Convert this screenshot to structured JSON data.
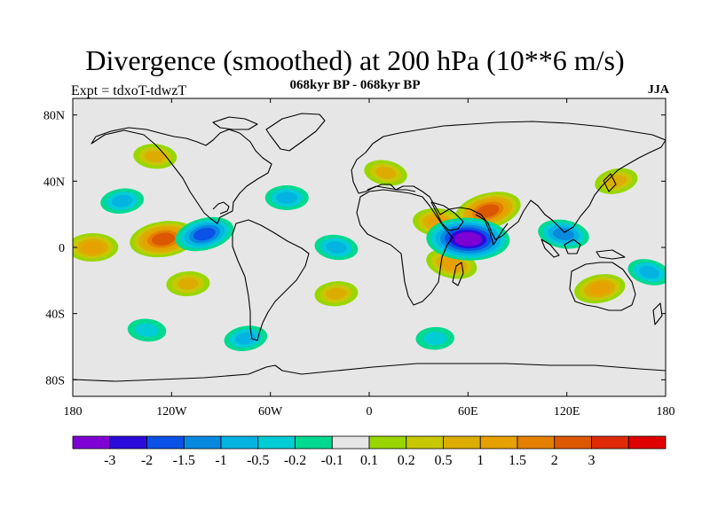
{
  "title": "Divergence (smoothed) at 200 hPa (10**6 m/s)",
  "subtitle": "068kyr BP - 068kyr BP",
  "left_label": "Expt = tdxoT-tdwzT",
  "right_label": "JJA",
  "map": {
    "projection": "cylindrical-equidistant",
    "lon_range": [
      -180,
      180
    ],
    "lat_range": [
      -90,
      90
    ],
    "background_color": "#e6e6e6",
    "coastline_color": "#000000"
  },
  "axes": {
    "x_ticks": [
      {
        "value": -180,
        "label": "180"
      },
      {
        "value": -120,
        "label": "120W"
      },
      {
        "value": -60,
        "label": "60W"
      },
      {
        "value": 0,
        "label": "0"
      },
      {
        "value": 60,
        "label": "60E"
      },
      {
        "value": 120,
        "label": "120E"
      },
      {
        "value": 180,
        "label": "180"
      }
    ],
    "y_ticks": [
      {
        "value": 80,
        "label": "80N"
      },
      {
        "value": 40,
        "label": "40N"
      },
      {
        "value": 0,
        "label": "0"
      },
      {
        "value": -40,
        "label": "40S"
      },
      {
        "value": -80,
        "label": "80S"
      }
    ]
  },
  "colorbar": {
    "colors": [
      "#7f00d4",
      "#2b0bdc",
      "#0b52e6",
      "#0789e0",
      "#04b3e2",
      "#02ccd6",
      "#00d990",
      "#e6e6e6",
      "#99d600",
      "#c8c800",
      "#dcad00",
      "#e6a000",
      "#e47f00",
      "#dc5800",
      "#e02b08",
      "#e00000"
    ],
    "labels": [
      "-3",
      "-2",
      "-1.5",
      "-1",
      "-0.5",
      "-0.2",
      "-0.1",
      "0.1",
      "0.2",
      "0.5",
      "1",
      "1.5",
      "2",
      "3"
    ]
  },
  "chart_data": {
    "type": "heatmap",
    "variable": "Divergence (smoothed)",
    "level": "200 hPa",
    "units": "10**6 m/s",
    "season": "JJA",
    "contour_levels": [
      -3,
      -2,
      -1.5,
      -1,
      -0.5,
      -0.2,
      -0.1,
      0.1,
      0.2,
      0.5,
      1,
      1.5,
      2,
      3
    ],
    "features": [
      {
        "lon": 72,
        "lat": 22,
        "value": 2
      },
      {
        "lon": -125,
        "lat": 5,
        "value": 2
      },
      {
        "lon": -168,
        "lat": 0,
        "value": 1
      },
      {
        "lon": 42,
        "lat": 15,
        "value": 1
      },
      {
        "lon": 50,
        "lat": -10,
        "value": 1
      },
      {
        "lon": 140,
        "lat": -25,
        "value": 1
      },
      {
        "lon": -110,
        "lat": -22,
        "value": 0.5
      },
      {
        "lon": -130,
        "lat": 55,
        "value": 0.5
      },
      {
        "lon": 10,
        "lat": 45,
        "value": 0.5
      },
      {
        "lon": 150,
        "lat": 40,
        "value": 0.5
      },
      {
        "lon": -20,
        "lat": -28,
        "value": 0.5
      },
      {
        "lon": 60,
        "lat": 5,
        "value": -3
      },
      {
        "lon": 118,
        "lat": 8,
        "value": -1
      },
      {
        "lon": -100,
        "lat": 8,
        "value": -1.5
      },
      {
        "lon": -150,
        "lat": 28,
        "value": -0.5
      },
      {
        "lon": -50,
        "lat": 30,
        "value": -0.5
      },
      {
        "lon": -20,
        "lat": 0,
        "value": -0.5
      },
      {
        "lon": 170,
        "lat": -15,
        "value": -0.5
      },
      {
        "lon": -75,
        "lat": -55,
        "value": -0.5
      },
      {
        "lon": 40,
        "lat": -55,
        "value": -0.2
      },
      {
        "lon": -135,
        "lat": -50,
        "value": -0.2
      }
    ]
  }
}
